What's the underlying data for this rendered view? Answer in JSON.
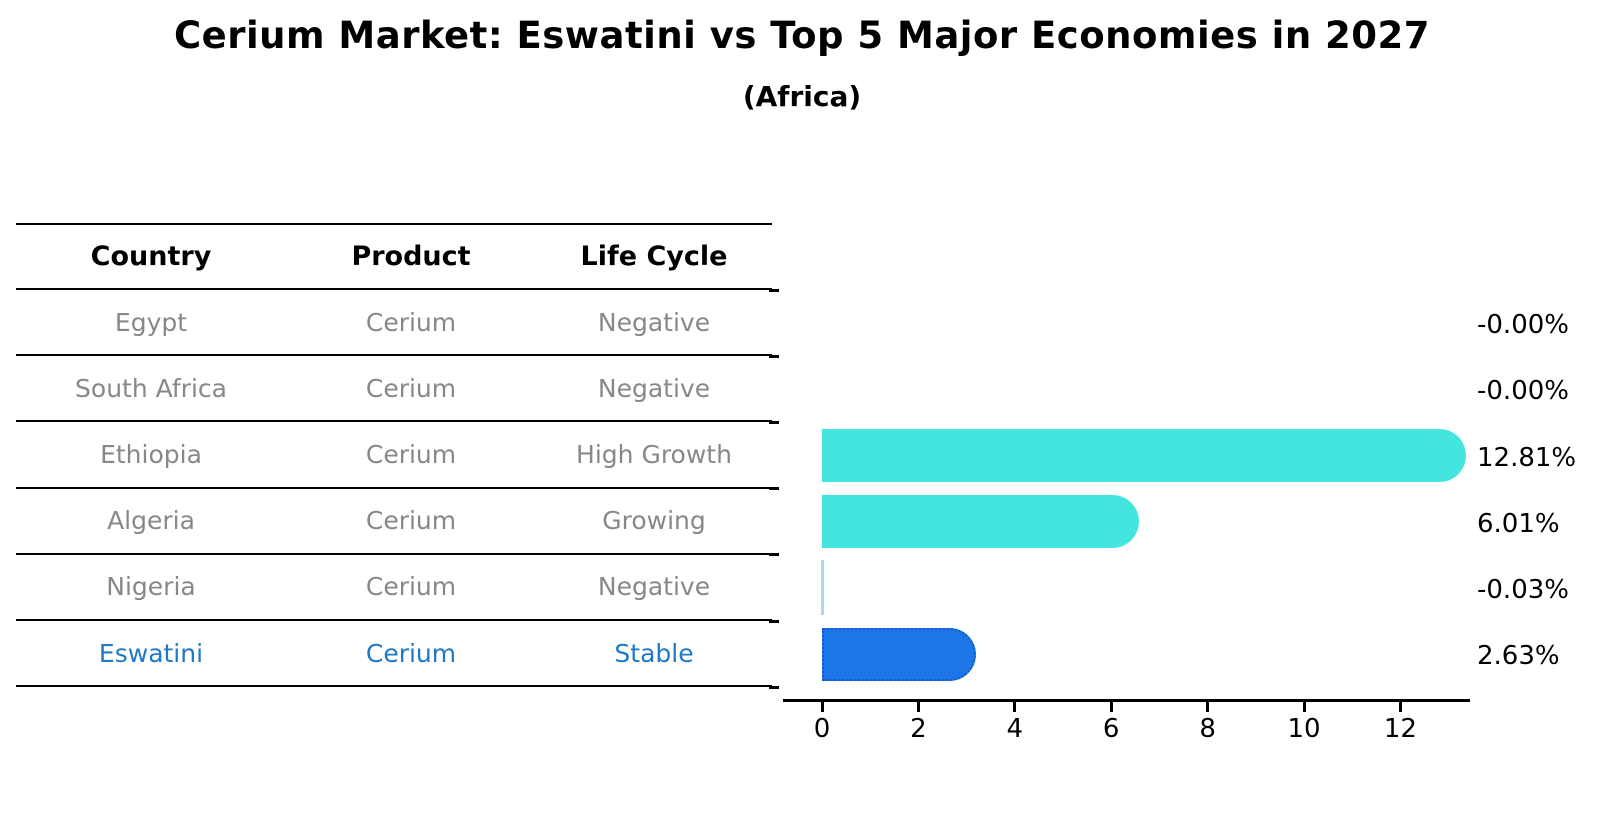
{
  "title": "Cerium Market: Eswatini vs Top 5 Major Economies in 2027",
  "subtitle": "(Africa)",
  "table": {
    "headers": [
      "Country",
      "Product",
      "Life Cycle"
    ],
    "rows": [
      {
        "country": "Egypt",
        "product": "Cerium",
        "life_cycle": "Negative",
        "highlight": false
      },
      {
        "country": "South Africa",
        "product": "Cerium",
        "life_cycle": "Negative",
        "highlight": false
      },
      {
        "country": "Ethiopia",
        "product": "Cerium",
        "life_cycle": "High Growth",
        "highlight": false
      },
      {
        "country": "Algeria",
        "product": "Cerium",
        "life_cycle": "Growing",
        "highlight": false
      },
      {
        "country": "Nigeria",
        "product": "Cerium",
        "life_cycle": "Negative",
        "highlight": false
      },
      {
        "country": "Eswatini",
        "product": "Cerium",
        "life_cycle": "Stable",
        "highlight": true
      }
    ]
  },
  "chart_data": {
    "type": "bar",
    "orientation": "horizontal",
    "title": "Cerium Market: Eswatini vs Top 5 Major Economies in 2027",
    "subtitle": "(Africa)",
    "categories": [
      "Egypt",
      "South Africa",
      "Ethiopia",
      "Algeria",
      "Nigeria",
      "Eswatini"
    ],
    "values": [
      -0.0,
      -0.0,
      12.81,
      6.01,
      -0.03,
      2.63
    ],
    "value_labels": [
      "-0.00%",
      "-0.00%",
      "12.81%",
      "6.01%",
      "-0.03%",
      "2.63%"
    ],
    "x_ticks": [
      0,
      2,
      4,
      6,
      8,
      10,
      12
    ],
    "xlim": [
      -0.8,
      13.4
    ],
    "grid": false,
    "legend": false,
    "highlight_index": 5
  },
  "colors": {
    "bar": "#45e5df",
    "highlight_bar": "#1c76e8",
    "highlight_border": "#1659c9",
    "sliver_bar": "#a6d9ee",
    "row_text": "#888888",
    "highlight_text": "#1f78c8",
    "header_text": "#000000"
  }
}
